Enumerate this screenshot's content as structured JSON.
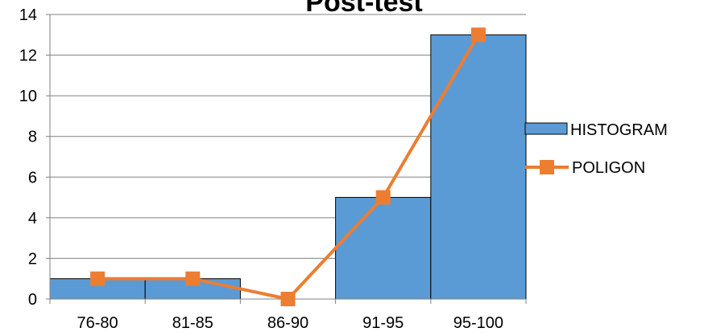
{
  "chart_data": {
    "type": "bar",
    "title": "Post-test",
    "categories": [
      "76-80",
      "81-85",
      "86-90",
      "91-95",
      "95-100"
    ],
    "series": [
      {
        "name": "HISTOGRAM",
        "type": "bar",
        "values": [
          1,
          1,
          0,
          5,
          13
        ]
      },
      {
        "name": "POLIGON",
        "type": "line",
        "values": [
          1,
          1,
          0,
          5,
          13
        ]
      }
    ],
    "ylim": [
      0,
      14
    ],
    "yticks": [
      0,
      2,
      4,
      6,
      8,
      10,
      12,
      14
    ],
    "grid": true,
    "legend_position": "right",
    "colors": {
      "bar": "#5b9bd5",
      "bar_edge": "#000000",
      "line": "#ed7d31",
      "grid": "#808080"
    }
  }
}
